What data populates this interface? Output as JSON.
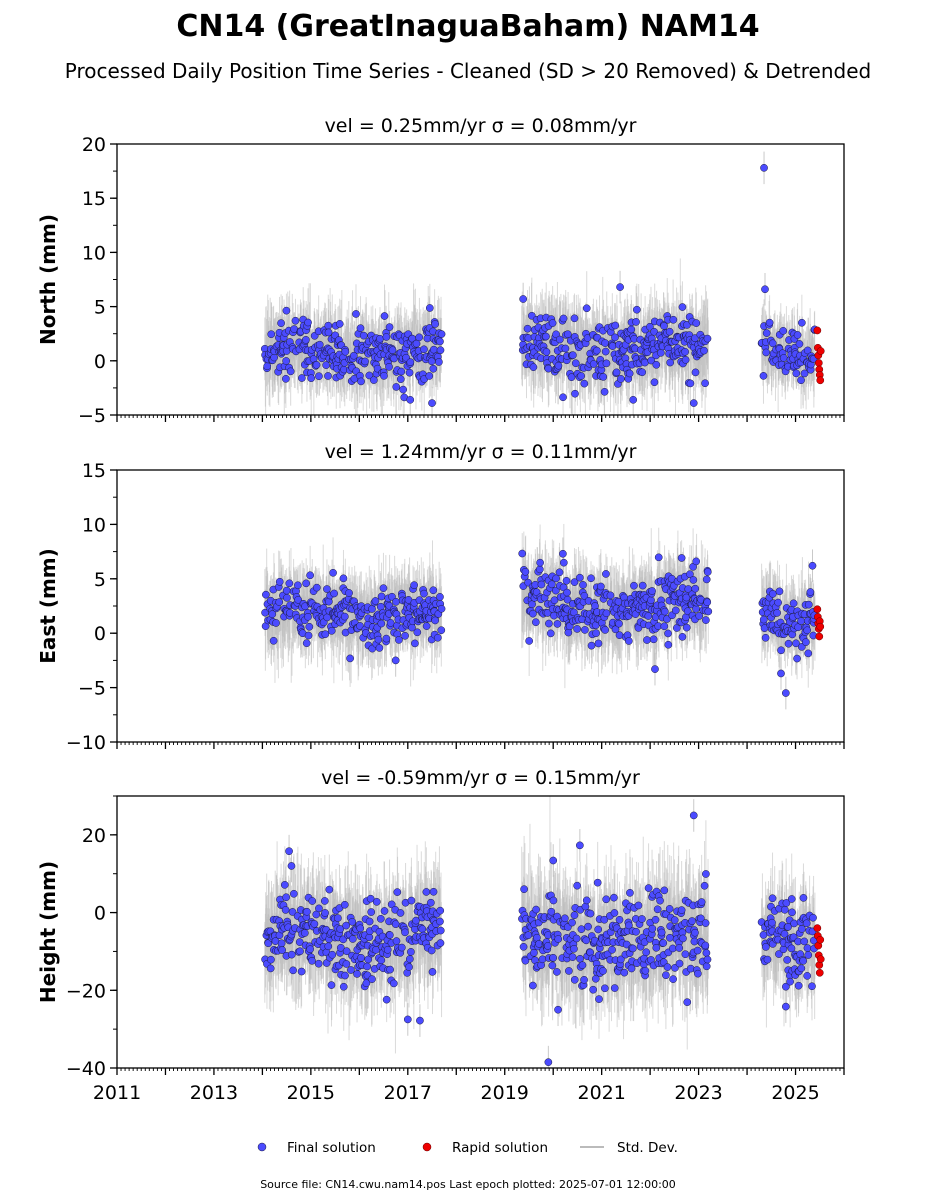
{
  "figure": {
    "title": "CN14 (GreatInaguaBaham) NAM14",
    "subtitle": "Processed Daily Position Time Series - Cleaned (SD > 20 Removed) & Detrended",
    "source_note": "Source file: CN14.cwu.nam14.pos  Last epoch plotted: 2025-07-01 12:00:00"
  },
  "colors": {
    "final": "#4b4bff",
    "rapid": "#ee0000",
    "stddev": "#bbbbbb",
    "edge": "#1a1a3a"
  },
  "chart_data": [
    {
      "type": "scatter",
      "panel": "north",
      "title": "vel = 0.25mm/yr   σ = 0.08mm/yr",
      "ylabel": "North (mm)",
      "xlim": [
        2011,
        2026
      ],
      "ylim": [
        -5,
        20
      ],
      "yticks": [
        -5,
        0,
        5,
        10,
        15,
        20
      ],
      "xticks": [
        2011,
        2013,
        2015,
        2017,
        2019,
        2021,
        2023,
        2025
      ],
      "segments": [
        {
          "start": 2014.05,
          "end": 2017.7,
          "center": 0.8,
          "spread": 1.4
        },
        {
          "start": 2019.35,
          "end": 2023.2,
          "center": 1.2,
          "spread": 1.5
        },
        {
          "start": 2024.3,
          "end": 2025.4,
          "center": 0.8,
          "spread": 1.2
        }
      ],
      "series": [
        {
          "name": "Final solution",
          "points": [
            [
              2024.35,
              17.8
            ],
            [
              2024.37,
              6.6
            ],
            [
              2021.38,
              6.8
            ],
            [
              2019.38,
              5.7
            ],
            [
              2017.05,
              -3.6
            ],
            [
              2017.5,
              -3.9
            ],
            [
              2021.65,
              -3.6
            ],
            [
              2022.9,
              -3.9
            ]
          ]
        },
        {
          "name": "Rapid solution",
          "points": [
            [
              2025.45,
              2.8
            ],
            [
              2025.46,
              1.2
            ],
            [
              2025.47,
              0.5
            ],
            [
              2025.48,
              -0.2
            ],
            [
              2025.49,
              -0.8
            ],
            [
              2025.5,
              -1.3
            ],
            [
              2025.51,
              -1.8
            ],
            [
              2025.52,
              0.9
            ]
          ]
        }
      ]
    },
    {
      "type": "scatter",
      "panel": "east",
      "title": "vel = 1.24mm/yr   σ = 0.11mm/yr",
      "ylabel": "East (mm)",
      "xlim": [
        2011,
        2026
      ],
      "ylim": [
        -10,
        15
      ],
      "yticks": [
        -10,
        -5,
        0,
        5,
        10,
        15
      ],
      "xticks": [
        2011,
        2013,
        2015,
        2017,
        2019,
        2021,
        2023,
        2025
      ],
      "segments": [
        {
          "start": 2014.05,
          "end": 2017.7,
          "center": 1.7,
          "spread": 1.4
        },
        {
          "start": 2019.35,
          "end": 2023.2,
          "center": 2.5,
          "spread": 1.5
        },
        {
          "start": 2024.3,
          "end": 2025.4,
          "center": 1.2,
          "spread": 1.3
        }
      ],
      "series": [
        {
          "name": "Final solution",
          "points": [
            [
              2020.2,
              7.3
            ],
            [
              2022.95,
              6.6
            ],
            [
              2025.35,
              6.2
            ],
            [
              2024.8,
              -5.5
            ],
            [
              2024.7,
              -3.7
            ],
            [
              2016.75,
              -2.5
            ],
            [
              2022.1,
              -3.3
            ]
          ]
        },
        {
          "name": "Rapid solution",
          "points": [
            [
              2025.45,
              2.2
            ],
            [
              2025.46,
              1.5
            ],
            [
              2025.47,
              0.9
            ],
            [
              2025.48,
              0.4
            ],
            [
              2025.49,
              -0.3
            ],
            [
              2025.5,
              1.1
            ],
            [
              2025.51,
              0.6
            ]
          ]
        }
      ]
    },
    {
      "type": "scatter",
      "panel": "height",
      "title": "vel = -0.59mm/yr   σ = 0.15mm/yr",
      "ylabel": "Height (mm)",
      "xlim": [
        2011,
        2026
      ],
      "ylim": [
        -40,
        30
      ],
      "yticks": [
        -40,
        -20,
        0,
        20
      ],
      "xticks": [
        2011,
        2013,
        2015,
        2017,
        2019,
        2021,
        2023,
        2025
      ],
      "xticklabels": [
        "2011",
        "2013",
        "2015",
        "2017",
        "2019",
        "2021",
        "2023",
        "2025"
      ],
      "segments": [
        {
          "start": 2014.05,
          "end": 2017.7,
          "center": -6.5,
          "spread": 5.5
        },
        {
          "start": 2019.35,
          "end": 2023.2,
          "center": -7.0,
          "spread": 6.0
        },
        {
          "start": 2024.3,
          "end": 2025.4,
          "center": -7.0,
          "spread": 5.0
        }
      ],
      "series": [
        {
          "name": "Final solution",
          "points": [
            [
              2022.9,
              25.0
            ],
            [
              2019.9,
              -38.5
            ],
            [
              2014.55,
              15.8
            ],
            [
              2014.6,
              12.0
            ],
            [
              2020.55,
              17.3
            ],
            [
              2017.0,
              -27.5
            ],
            [
              2017.25,
              -27.8
            ],
            [
              2020.1,
              -25.0
            ],
            [
              2024.8,
              -24.2
            ],
            [
              2020.0,
              13.4
            ]
          ]
        },
        {
          "name": "Rapid solution",
          "points": [
            [
              2025.45,
              -4.0
            ],
            [
              2025.46,
              -6.0
            ],
            [
              2025.47,
              -8.5
            ],
            [
              2025.48,
              -11.0
            ],
            [
              2025.49,
              -13.5
            ],
            [
              2025.5,
              -15.5
            ],
            [
              2025.51,
              -7.0
            ],
            [
              2025.52,
              -12.0
            ]
          ]
        }
      ]
    }
  ],
  "legend": {
    "items": [
      {
        "label": "Final solution",
        "kind": "final"
      },
      {
        "label": "Rapid solution",
        "kind": "rapid"
      },
      {
        "label": "Std. Dev.",
        "kind": "stddev"
      }
    ],
    "placement": "bottom-center"
  }
}
